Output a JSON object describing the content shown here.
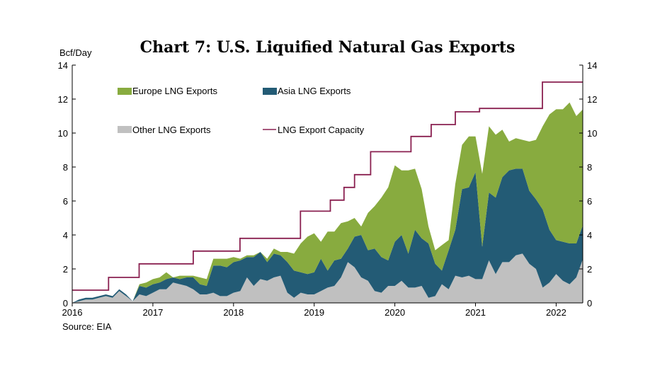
{
  "chart_data": {
    "type": "area",
    "title": "Chart 7: U.S. Liquified Natural Gas Exports",
    "ylabel": "Bcf/Day",
    "source": "Source: EIA",
    "ylim": [
      0,
      14
    ],
    "yticks": [
      0,
      2,
      4,
      6,
      8,
      10,
      12,
      14
    ],
    "xlim": [
      2016.0,
      2022.33
    ],
    "xticks": [
      2016,
      2017,
      2018,
      2019,
      2020,
      2021,
      2022
    ],
    "xtick_labels": [
      "2016",
      "2017",
      "2018",
      "2019",
      "2020",
      "2021",
      "2022"
    ],
    "stacked": true,
    "legend_position": "top-left, inside plot",
    "x": [
      2016.0,
      2016.083,
      2016.167,
      2016.25,
      2016.333,
      2016.417,
      2016.5,
      2016.583,
      2016.667,
      2016.75,
      2016.833,
      2016.917,
      2017.0,
      2017.083,
      2017.167,
      2017.25,
      2017.333,
      2017.417,
      2017.5,
      2017.583,
      2017.667,
      2017.75,
      2017.833,
      2017.917,
      2018.0,
      2018.083,
      2018.167,
      2018.25,
      2018.333,
      2018.417,
      2018.5,
      2018.583,
      2018.667,
      2018.75,
      2018.833,
      2018.917,
      2019.0,
      2019.083,
      2019.167,
      2019.25,
      2019.333,
      2019.417,
      2019.5,
      2019.583,
      2019.667,
      2019.75,
      2019.833,
      2019.917,
      2020.0,
      2020.083,
      2020.167,
      2020.25,
      2020.333,
      2020.417,
      2020.5,
      2020.583,
      2020.667,
      2020.75,
      2020.833,
      2020.917,
      2021.0,
      2021.083,
      2021.167,
      2021.25,
      2021.333,
      2021.417,
      2021.5,
      2021.583,
      2021.667,
      2021.75,
      2021.833,
      2021.917,
      2022.0,
      2022.083,
      2022.167,
      2022.25,
      2022.333
    ],
    "series": [
      {
        "name": "Other LNG Exports",
        "color": "#c0c0c0",
        "values": [
          0.0,
          0.1,
          0.2,
          0.2,
          0.3,
          0.4,
          0.3,
          0.7,
          0.4,
          0.1,
          0.5,
          0.4,
          0.6,
          0.8,
          0.8,
          1.2,
          1.1,
          1.0,
          0.8,
          0.5,
          0.5,
          0.6,
          0.4,
          0.4,
          0.6,
          0.7,
          1.5,
          1.0,
          1.4,
          1.3,
          1.5,
          1.6,
          0.6,
          0.3,
          0.6,
          0.5,
          0.5,
          0.7,
          0.9,
          1.0,
          1.5,
          2.4,
          2.1,
          1.5,
          1.3,
          0.7,
          0.6,
          1.0,
          1.0,
          1.3,
          0.9,
          0.9,
          1.0,
          0.3,
          0.4,
          1.1,
          0.8,
          1.6,
          1.5,
          1.6,
          1.4,
          1.4,
          2.5,
          1.7,
          2.4,
          2.4,
          2.8,
          2.9,
          2.3,
          2.0,
          0.9,
          1.2,
          1.7,
          1.3,
          1.1,
          1.5,
          2.6
        ]
      },
      {
        "name": "Asia LNG Exports",
        "color": "#235b75",
        "values": [
          0.0,
          0.1,
          0.1,
          0.1,
          0.1,
          0.1,
          0.1,
          0.1,
          0.1,
          0.0,
          0.5,
          0.5,
          0.5,
          0.4,
          0.6,
          0.3,
          0.3,
          0.5,
          0.7,
          0.6,
          0.5,
          1.6,
          1.8,
          1.7,
          1.8,
          1.8,
          1.2,
          1.7,
          1.6,
          1.1,
          1.4,
          1.2,
          1.8,
          1.6,
          1.2,
          1.2,
          1.3,
          1.9,
          1.0,
          1.5,
          1.1,
          0.8,
          1.8,
          2.5,
          1.8,
          2.5,
          2.1,
          1.5,
          2.6,
          2.7,
          2.0,
          3.4,
          2.8,
          3.2,
          1.9,
          0.8,
          2.3,
          2.7,
          5.2,
          5.2,
          6.3,
          1.9,
          4.0,
          4.5,
          5.0,
          5.4,
          5.1,
          5.0,
          4.3,
          4.1,
          4.6,
          3.1,
          2.0,
          2.3,
          2.4,
          2.0,
          2.0
        ]
      },
      {
        "name": "Europe LNG Exports",
        "color": "#88ab3f",
        "values": [
          0.0,
          0.0,
          0.0,
          0.0,
          0.0,
          0.0,
          0.0,
          0.0,
          0.0,
          0.0,
          0.1,
          0.3,
          0.3,
          0.3,
          0.4,
          0.0,
          0.2,
          0.1,
          0.1,
          0.4,
          0.4,
          0.4,
          0.4,
          0.5,
          0.3,
          0.1,
          0.1,
          0.1,
          0.0,
          0.2,
          0.3,
          0.2,
          0.6,
          1.0,
          1.7,
          2.2,
          2.3,
          1.0,
          2.3,
          1.7,
          2.1,
          1.6,
          1.1,
          0.5,
          2.2,
          2.5,
          3.5,
          4.3,
          4.5,
          3.8,
          4.9,
          3.6,
          2.9,
          1.0,
          0.8,
          1.5,
          0.6,
          2.7,
          2.6,
          3.0,
          2.1,
          4.3,
          3.9,
          3.7,
          2.8,
          1.7,
          1.8,
          1.7,
          2.9,
          3.5,
          4.9,
          6.8,
          7.7,
          7.8,
          8.3,
          7.5,
          6.8
        ]
      }
    ],
    "capacity": {
      "name": "LNG Export Capacity",
      "color": "#8a2050",
      "steps": [
        [
          2016.0,
          0.75
        ],
        [
          2016.45,
          1.5
        ],
        [
          2016.83,
          2.3
        ],
        [
          2017.5,
          3.05
        ],
        [
          2018.08,
          3.8
        ],
        [
          2018.83,
          5.4
        ],
        [
          2019.2,
          6.05
        ],
        [
          2019.37,
          6.8
        ],
        [
          2019.5,
          7.55
        ],
        [
          2019.7,
          8.9
        ],
        [
          2020.2,
          9.8
        ],
        [
          2020.45,
          10.5
        ],
        [
          2020.75,
          11.25
        ],
        [
          2021.05,
          11.45
        ],
        [
          2021.83,
          13.0
        ],
        [
          2022.33,
          13.0
        ]
      ]
    }
  }
}
